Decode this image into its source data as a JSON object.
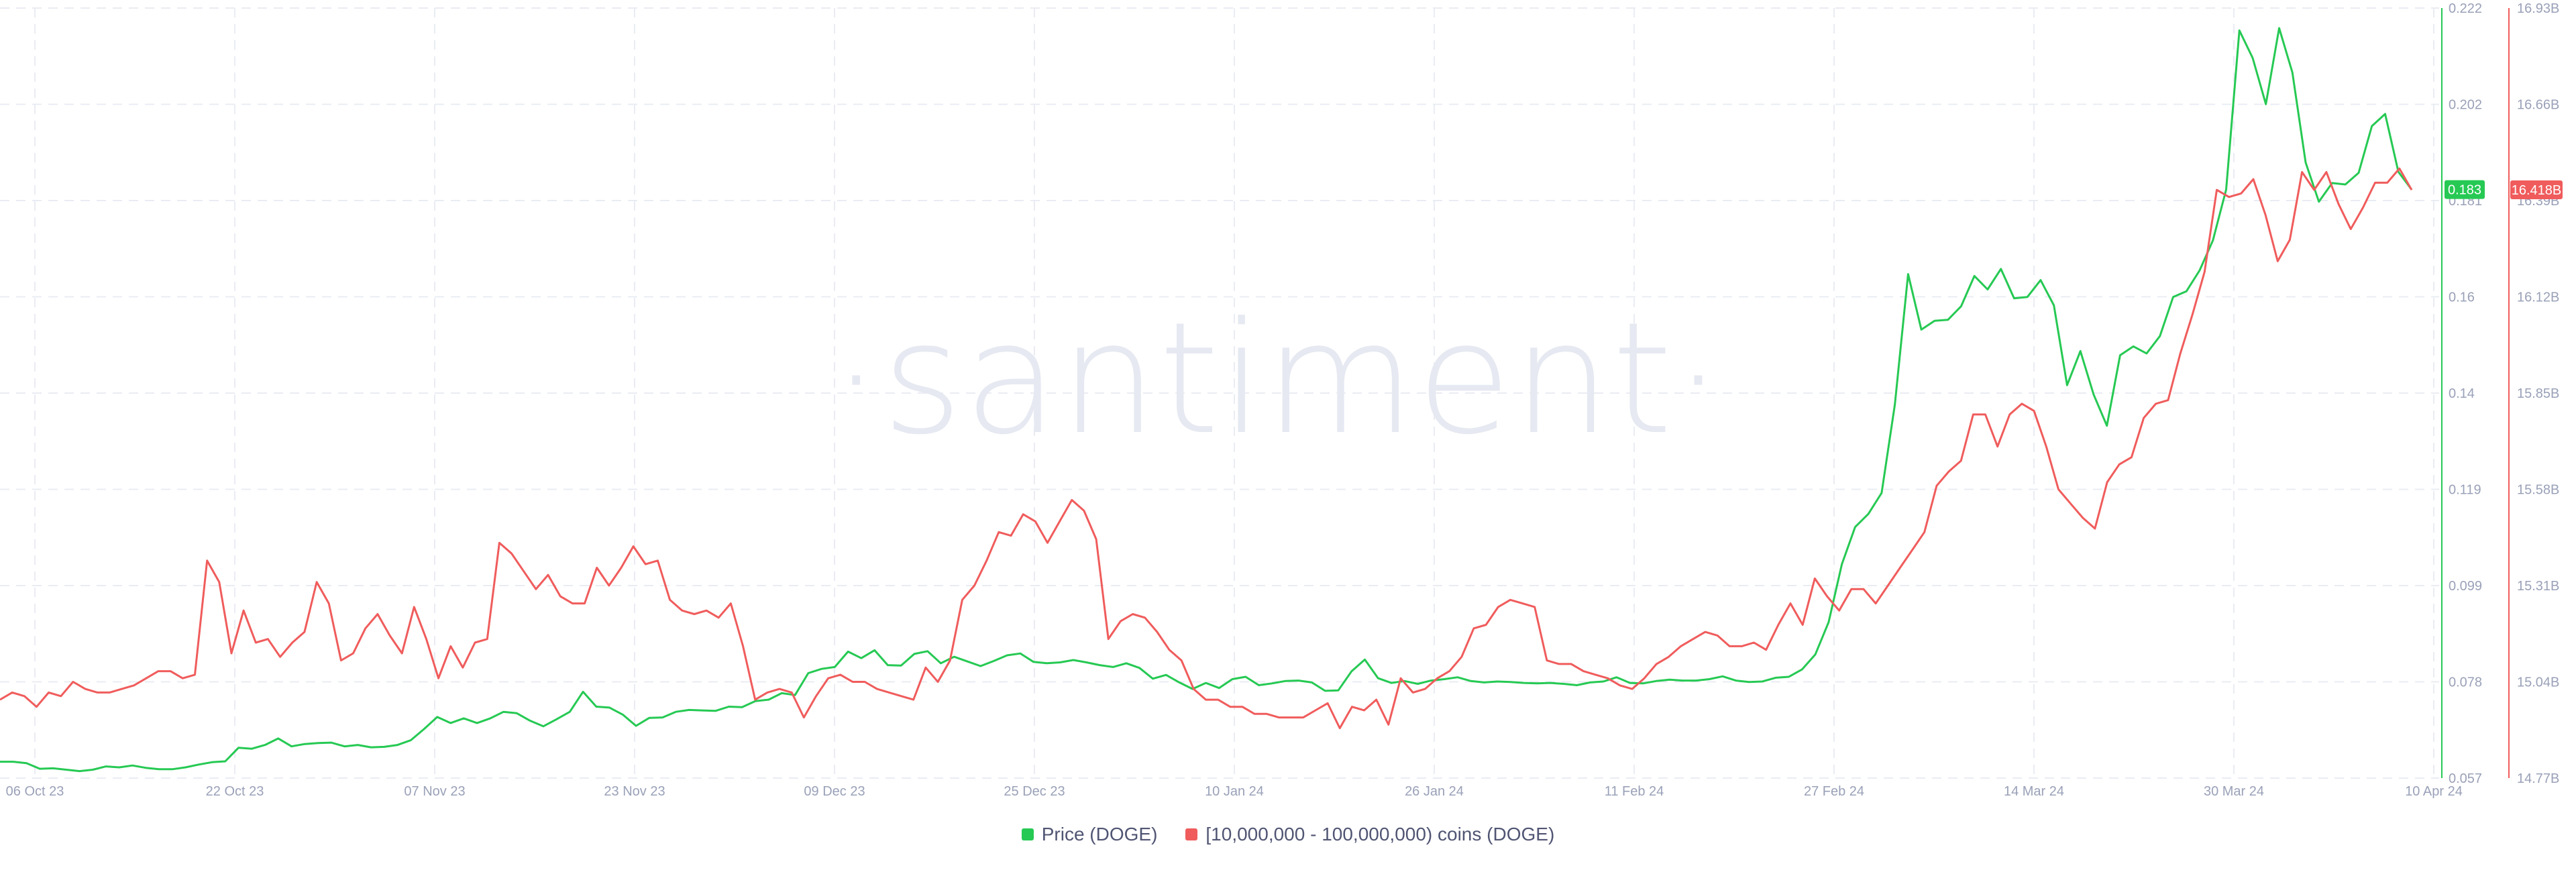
{
  "watermark": "·santiment·",
  "colors": {
    "price": "#26c953",
    "holders": "#f05c5c",
    "grid": "#e9ecf3",
    "tick": "#9aa1b8"
  },
  "chart_data": {
    "type": "line",
    "title": "",
    "x_ticks": [
      "06 Oct 23",
      "22 Oct 23",
      "07 Nov 23",
      "23 Nov 23",
      "09 Dec 23",
      "25 Dec 23",
      "10 Jan 24",
      "26 Jan 24",
      "11 Feb 24",
      "27 Feb 24",
      "14 Mar 24",
      "30 Mar 24",
      "10 Apr 24"
    ],
    "x_range": [
      "2023-10-06",
      "2024-04-10"
    ],
    "grid": true,
    "legend_position": "bottom-center",
    "y_left": {
      "series": "Price (DOGE)",
      "ticks": [
        "0.222",
        "0.202",
        "0.181",
        "0.16",
        "0.14",
        "0.119",
        "0.099",
        "0.078",
        "0.057"
      ],
      "range": [
        0.057,
        0.222
      ],
      "last_value_label": "0.183"
    },
    "y_right": {
      "series": "[10,000,000 - 100,000,000) coins (DOGE)",
      "ticks": [
        "16.93B",
        "16.66B",
        "16.39B",
        "16.12B",
        "15.85B",
        "15.58B",
        "15.31B",
        "15.04B",
        "14.77B"
      ],
      "range": [
        14.77,
        16.93
      ],
      "unit": "B",
      "last_value_label": "16.418B"
    },
    "series": [
      {
        "name": "Price (DOGE)",
        "axis": "left",
        "color": "#26c953",
        "values": [
          0.0605,
          0.0605,
          0.0602,
          0.059,
          0.0591,
          0.0588,
          0.0585,
          0.0588,
          0.0595,
          0.0593,
          0.0597,
          0.0592,
          0.0589,
          0.0589,
          0.0593,
          0.0599,
          0.0604,
          0.0606,
          0.0635,
          0.0633,
          0.0641,
          0.0655,
          0.0638,
          0.0643,
          0.0645,
          0.0646,
          0.0638,
          0.0641,
          0.0636,
          0.0637,
          0.0641,
          0.0651,
          0.0675,
          0.0701,
          0.0688,
          0.0698,
          0.0688,
          0.0698,
          0.0712,
          0.0709,
          0.0693,
          0.0681,
          0.0696,
          0.0712,
          0.0755,
          0.0723,
          0.0721,
          0.0706,
          0.0682,
          0.0699,
          0.07,
          0.0712,
          0.0716,
          0.0715,
          0.0714,
          0.0723,
          0.0722,
          0.0735,
          0.0738,
          0.0752,
          0.0748,
          0.0795,
          0.0804,
          0.0808,
          0.0841,
          0.0827,
          0.0844,
          0.0812,
          0.0811,
          0.0836,
          0.0842,
          0.0816,
          0.083,
          0.082,
          0.081,
          0.0821,
          0.0833,
          0.0837,
          0.0819,
          0.0816,
          0.0818,
          0.0823,
          0.0818,
          0.0812,
          0.0808,
          0.0816,
          0.0806,
          0.0783,
          0.0791,
          0.0775,
          0.0761,
          0.0774,
          0.0763,
          0.0782,
          0.0787,
          0.0769,
          0.0773,
          0.0778,
          0.0779,
          0.0775,
          0.0757,
          0.0758,
          0.0799,
          0.0824,
          0.0784,
          0.0774,
          0.0778,
          0.0772,
          0.0779,
          0.0782,
          0.0786,
          0.0778,
          0.0775,
          0.0777,
          0.0776,
          0.0774,
          0.0773,
          0.0774,
          0.0772,
          0.0769,
          0.0775,
          0.0777,
          0.0786,
          0.0774,
          0.0773,
          0.0778,
          0.0781,
          0.0779,
          0.0779,
          0.0782,
          0.0788,
          0.0779,
          0.0776,
          0.0777,
          0.0785,
          0.0787,
          0.0803,
          0.0835,
          0.0904,
          0.1028,
          0.1108,
          0.1136,
          0.1181,
          0.137,
          0.165,
          0.1531,
          0.155,
          0.1552,
          0.1581,
          0.1646,
          0.1617,
          0.1661,
          0.1598,
          0.1601,
          0.1637,
          0.1583,
          0.1412,
          0.1485,
          0.1392,
          0.1325,
          0.1476,
          0.1495,
          0.148,
          0.1517,
          0.1601,
          0.1613,
          0.1658,
          0.1722,
          0.1831,
          0.2172,
          0.2113,
          0.2014,
          0.2177,
          0.2082,
          0.1889,
          0.1805,
          0.1845,
          0.1842,
          0.1867,
          0.1967,
          0.1993,
          0.1869,
          0.1831
        ]
      },
      {
        "name": "[10,000,000 - 100,000,000) coins (DOGE)",
        "axis": "right",
        "color": "#f05c5c",
        "values": [
          14.99,
          15.01,
          15.0,
          14.97,
          15.01,
          15.0,
          15.04,
          15.02,
          15.01,
          15.01,
          15.02,
          15.03,
          15.05,
          15.07,
          15.07,
          15.05,
          15.06,
          15.38,
          15.32,
          15.12,
          15.24,
          15.15,
          15.16,
          15.11,
          15.15,
          15.18,
          15.32,
          15.26,
          15.1,
          15.12,
          15.19,
          15.23,
          15.17,
          15.12,
          15.25,
          15.16,
          15.05,
          15.14,
          15.08,
          15.15,
          15.16,
          15.43,
          15.4,
          15.35,
          15.3,
          15.34,
          15.28,
          15.26,
          15.26,
          15.36,
          15.31,
          15.36,
          15.42,
          15.37,
          15.38,
          15.27,
          15.24,
          15.23,
          15.24,
          15.22,
          15.26,
          15.14,
          14.99,
          15.01,
          15.02,
          15.01,
          14.94,
          15.0,
          15.05,
          15.06,
          15.04,
          15.04,
          15.02,
          15.01,
          15.0,
          14.99,
          15.08,
          15.04,
          15.1,
          15.27,
          15.31,
          15.38,
          15.46,
          15.45,
          15.51,
          15.49,
          15.43,
          15.49,
          15.55,
          15.52,
          15.44,
          15.16,
          15.21,
          15.23,
          15.22,
          15.18,
          15.13,
          15.1,
          15.02,
          14.99,
          14.99,
          14.97,
          14.97,
          14.95,
          14.95,
          14.94,
          14.94,
          14.94,
          14.96,
          14.98,
          14.91,
          14.97,
          14.96,
          14.99,
          14.92,
          15.05,
          15.01,
          15.02,
          15.05,
          15.07,
          15.11,
          15.19,
          15.2,
          15.25,
          15.27,
          15.26,
          15.25,
          15.1,
          15.09,
          15.09,
          15.07,
          15.06,
          15.05,
          15.03,
          15.02,
          15.05,
          15.09,
          15.11,
          15.14,
          15.16,
          15.18,
          15.17,
          15.14,
          15.14,
          15.15,
          15.13,
          15.2,
          15.26,
          15.2,
          15.33,
          15.28,
          15.24,
          15.3,
          15.3,
          15.26,
          15.31,
          15.36,
          15.41,
          15.46,
          15.59,
          15.63,
          15.66,
          15.79,
          15.79,
          15.7,
          15.79,
          15.82,
          15.8,
          15.7,
          15.58,
          15.54,
          15.5,
          15.47,
          15.6,
          15.65,
          15.67,
          15.78,
          15.82,
          15.83,
          15.96,
          16.07,
          16.19,
          16.42,
          16.4,
          16.41,
          16.45,
          16.35,
          16.22,
          16.28,
          16.47,
          16.42,
          16.47,
          16.38,
          16.31,
          16.37,
          16.44,
          16.44,
          16.48,
          16.42
        ]
      }
    ]
  },
  "legend": [
    {
      "label": "Price (DOGE)",
      "color": "#26c953"
    },
    {
      "label": "[10,000,000 - 100,000,000) coins (DOGE)",
      "color": "#f05c5c"
    }
  ]
}
